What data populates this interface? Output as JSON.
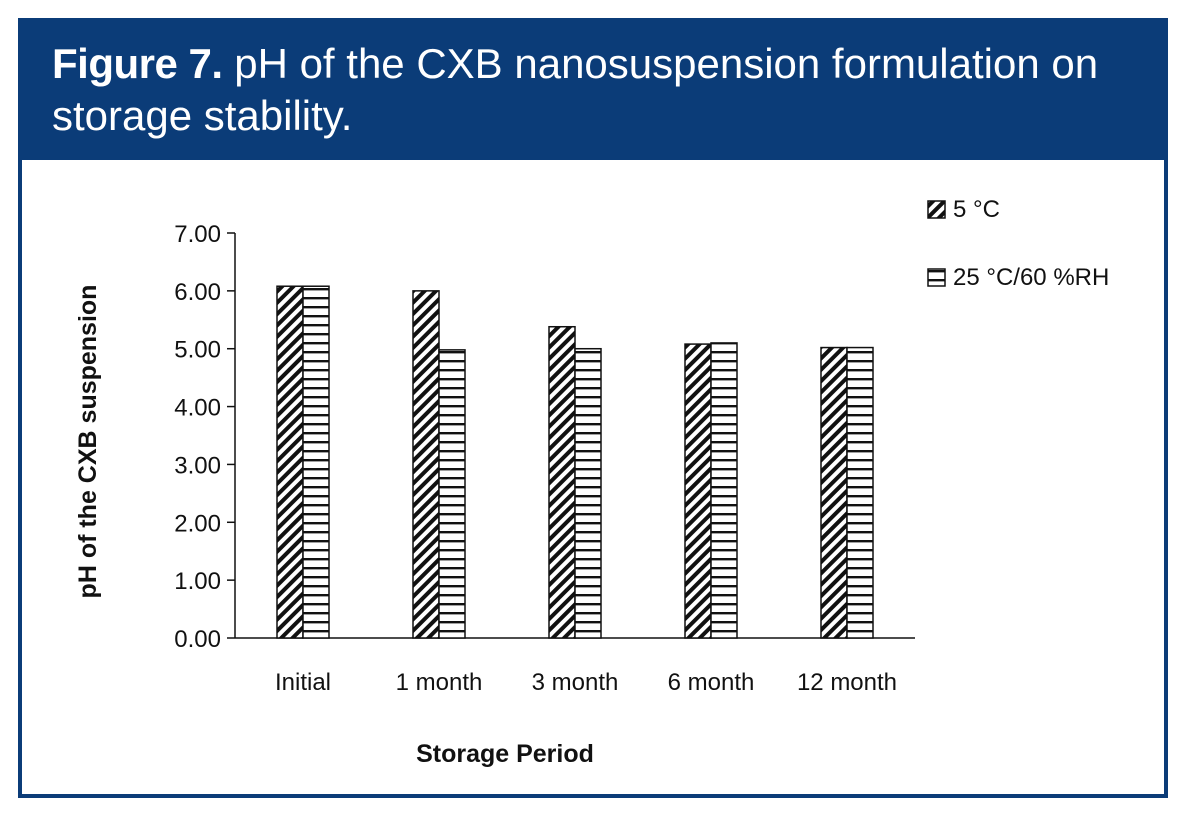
{
  "figure": {
    "label": "Figure 7.",
    "caption": " pH of the CXB nanosuspension formulation on storage stability."
  },
  "chart_data": {
    "type": "bar",
    "categories": [
      "Initial",
      "1 month",
      "3 month",
      "6 month",
      "12 month"
    ],
    "series": [
      {
        "name": "5 °C",
        "values": [
          6.08,
          6.0,
          5.38,
          5.08,
          5.02
        ],
        "pattern": "diagonal-hatch"
      },
      {
        "name": "25 °C/60 %RH",
        "values": [
          6.08,
          4.98,
          5.0,
          5.1,
          5.02
        ],
        "pattern": "horizontal-lines"
      }
    ],
    "xlabel": "Storage Period",
    "ylabel": "pH of the CXB suspension",
    "ylim": [
      0,
      7
    ],
    "yticks": [
      "0.00",
      "1.00",
      "2.00",
      "3.00",
      "4.00",
      "5.00",
      "6.00",
      "7.00"
    ],
    "grid": false,
    "legend_position": "top-right"
  },
  "colors": {
    "frame": "#0b3c78",
    "header_text": "#ffffff",
    "ink": "#111111"
  }
}
